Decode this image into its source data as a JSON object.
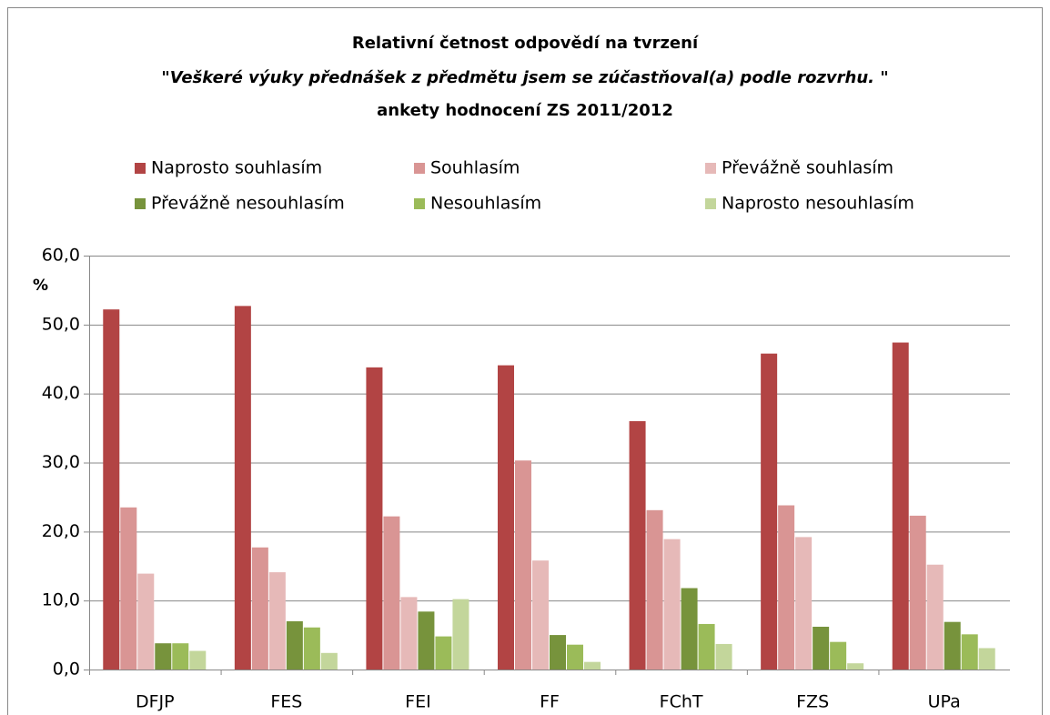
{
  "chart_data": {
    "type": "bar",
    "title": [
      "Relativní četnost odpovědí na tvrzení",
      "\"Veškeré výuky přednášek z předmětu jsem se zúčastňoval(a) podle rozvrhu. \"",
      "ankety hodnocení ZS 2011/2012"
    ],
    "y_label": "%",
    "categories": [
      "DFJP",
      "FES",
      "FEI",
      "FF",
      "FChT",
      "FZS",
      "UPa"
    ],
    "series": [
      {
        "name": "Naprosto souhlasím",
        "color": "#b24444",
        "values": [
          52.2,
          52.7,
          43.8,
          44.1,
          36.0,
          45.8,
          47.4
        ]
      },
      {
        "name": "Souhlasím",
        "color": "#d99594",
        "values": [
          23.5,
          17.7,
          22.2,
          30.3,
          23.1,
          23.8,
          22.3
        ]
      },
      {
        "name": "Převážně souhlasím",
        "color": "#e6b9b8",
        "values": [
          13.9,
          14.1,
          10.5,
          15.8,
          18.9,
          19.2,
          15.2
        ]
      },
      {
        "name": "Převážně nesouhlasím",
        "color": "#77933c",
        "values": [
          3.8,
          7.0,
          8.4,
          5.0,
          11.8,
          6.2,
          6.9
        ]
      },
      {
        "name": "Nesouhlasím",
        "color": "#9bbb59",
        "values": [
          3.8,
          6.1,
          4.8,
          3.6,
          6.6,
          4.0,
          5.1
        ]
      },
      {
        "name": "Naprosto nesouhlasím",
        "color": "#c3d69b",
        "values": [
          2.7,
          2.4,
          10.2,
          1.1,
          3.7,
          0.9,
          3.1
        ]
      }
    ],
    "ylim": [
      0,
      60
    ],
    "yticks": [
      {
        "value": 0,
        "label": "0,0"
      },
      {
        "value": 10,
        "label": "10,0"
      },
      {
        "value": 20,
        "label": "20,0"
      },
      {
        "value": 30,
        "label": "30,0"
      },
      {
        "value": 40,
        "label": "40,0"
      },
      {
        "value": 50,
        "label": "50,0"
      },
      {
        "value": 60,
        "label": "60,0"
      }
    ],
    "grid": true
  }
}
